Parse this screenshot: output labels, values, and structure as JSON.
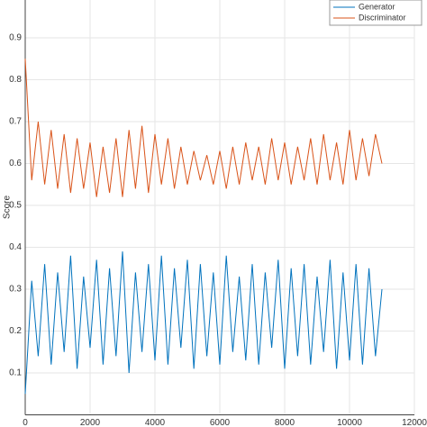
{
  "chart_data": {
    "type": "line",
    "y_label": "Score",
    "x": [
      0,
      200,
      400,
      600,
      800,
      1000,
      1200,
      1400,
      1600,
      1800,
      2000,
      2200,
      2400,
      2600,
      2800,
      3000,
      3200,
      3400,
      3600,
      3800,
      4000,
      4200,
      4400,
      4600,
      4800,
      5000,
      5200,
      5400,
      5600,
      5800,
      6000,
      6200,
      6400,
      6600,
      6800,
      7000,
      7200,
      7400,
      7600,
      7800,
      8000,
      8200,
      8400,
      8600,
      8800,
      9000,
      9200,
      9400,
      9600,
      9800,
      10000,
      10200,
      10400,
      10600,
      10800,
      11000
    ],
    "series": [
      {
        "name": "Generator",
        "color": "#0072bd",
        "values": [
          0.05,
          0.32,
          0.14,
          0.36,
          0.12,
          0.34,
          0.15,
          0.38,
          0.11,
          0.33,
          0.16,
          0.37,
          0.12,
          0.35,
          0.14,
          0.39,
          0.1,
          0.34,
          0.15,
          0.36,
          0.13,
          0.38,
          0.12,
          0.35,
          0.16,
          0.37,
          0.11,
          0.36,
          0.14,
          0.34,
          0.12,
          0.38,
          0.15,
          0.33,
          0.13,
          0.36,
          0.12,
          0.34,
          0.16,
          0.37,
          0.11,
          0.35,
          0.14,
          0.36,
          0.12,
          0.33,
          0.15,
          0.37,
          0.11,
          0.34,
          0.13,
          0.36,
          0.12,
          0.35,
          0.14,
          0.3
        ]
      },
      {
        "name": "Discriminator",
        "color": "#d95319",
        "values": [
          0.85,
          0.56,
          0.7,
          0.55,
          0.68,
          0.54,
          0.67,
          0.53,
          0.66,
          0.54,
          0.65,
          0.52,
          0.64,
          0.53,
          0.66,
          0.52,
          0.68,
          0.54,
          0.69,
          0.53,
          0.67,
          0.55,
          0.66,
          0.54,
          0.64,
          0.55,
          0.63,
          0.56,
          0.62,
          0.55,
          0.63,
          0.54,
          0.64,
          0.55,
          0.65,
          0.56,
          0.64,
          0.55,
          0.66,
          0.56,
          0.65,
          0.55,
          0.64,
          0.56,
          0.66,
          0.55,
          0.67,
          0.56,
          0.65,
          0.55,
          0.68,
          0.56,
          0.66,
          0.57,
          0.67,
          0.6
        ]
      }
    ],
    "xlim": [
      0,
      12000
    ],
    "xticks": [
      0,
      2000,
      4000,
      6000,
      8000,
      10000,
      12000
    ],
    "ylim": [
      0,
      1
    ],
    "yticks": [
      0.1,
      0.2,
      0.3,
      0.4,
      0.5,
      0.6,
      0.7,
      0.8,
      0.9
    ],
    "grid": true,
    "legend": "upper right"
  }
}
